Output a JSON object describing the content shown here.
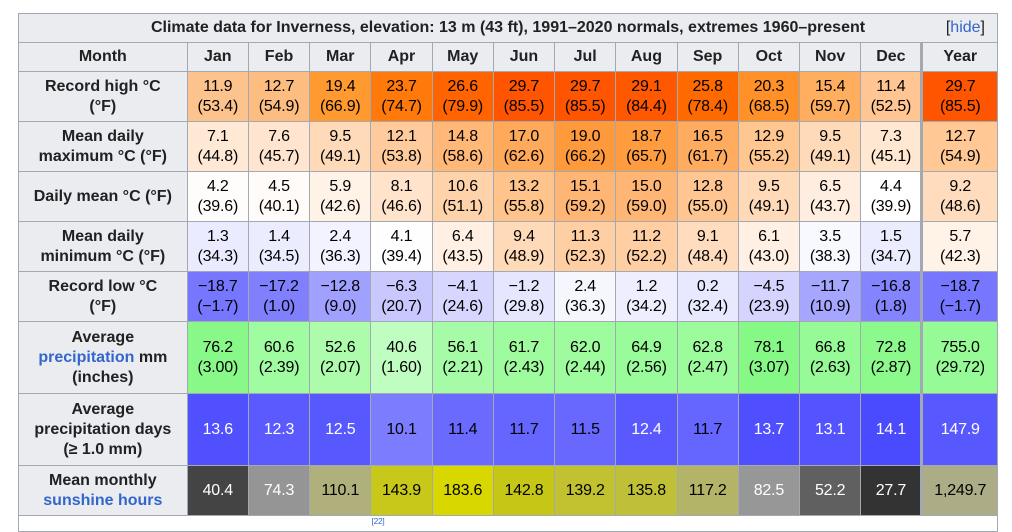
{
  "title": "Climate data for Inverness, elevation: 13 m (43 ft), 1991–2020 normals, extremes 1960–present",
  "hide_open": "[",
  "hide_label": "hide",
  "hide_close": "]",
  "month_header": "Month",
  "months": [
    "Jan",
    "Feb",
    "Mar",
    "Apr",
    "May",
    "Jun",
    "Jul",
    "Aug",
    "Sep",
    "Oct",
    "Nov",
    "Dec",
    "Year"
  ],
  "rows": [
    {
      "label": [
        "Record high °C",
        "(°F)"
      ],
      "height": 50,
      "cells": [
        [
          "11.9",
          "(53.4)",
          "#fdc38c",
          "#000"
        ],
        [
          "12.7",
          "(54.9)",
          "#fdbd80",
          "#000"
        ],
        [
          "19.4",
          "(66.9)",
          "#ff9a30",
          "#000"
        ],
        [
          "23.7",
          "(74.7)",
          "#ff7a0a",
          "#000"
        ],
        [
          "26.6",
          "(79.9)",
          "#ff6400",
          "#000"
        ],
        [
          "29.7",
          "(85.5)",
          "#ff5500",
          "#000"
        ],
        [
          "29.7",
          "(85.5)",
          "#ff5500",
          "#000"
        ],
        [
          "29.1",
          "(84.4)",
          "#ff5800",
          "#000"
        ],
        [
          "25.8",
          "(78.4)",
          "#ff6a00",
          "#000"
        ],
        [
          "20.3",
          "(68.5)",
          "#ff9128",
          "#000"
        ],
        [
          "15.4",
          "(59.7)",
          "#ffae60",
          "#000"
        ],
        [
          "11.4",
          "(52.5)",
          "#ffc592",
          "#000"
        ],
        [
          "29.7",
          "(85.5)",
          "#ff5500",
          "#000"
        ]
      ]
    },
    {
      "label": [
        "Mean daily",
        "maximum °C (°F)"
      ],
      "height": 50,
      "cells": [
        [
          "7.1",
          "(44.8)",
          "#ffe8d4",
          "#000"
        ],
        [
          "7.6",
          "(45.7)",
          "#ffe5cf",
          "#000"
        ],
        [
          "9.5",
          "(49.1)",
          "#ffdab9",
          "#000"
        ],
        [
          "12.1",
          "(53.8)",
          "#ffcb9c",
          "#000"
        ],
        [
          "14.8",
          "(58.6)",
          "#ffb878",
          "#000"
        ],
        [
          "17.0",
          "(62.6)",
          "#ffa95a",
          "#000"
        ],
        [
          "19.0",
          "(66.2)",
          "#ff9a3c",
          "#000"
        ],
        [
          "18.7",
          "(65.7)",
          "#ff9c40",
          "#000"
        ],
        [
          "16.5",
          "(61.7)",
          "#ffac60",
          "#000"
        ],
        [
          "12.9",
          "(55.2)",
          "#ffc690",
          "#000"
        ],
        [
          "9.5",
          "(49.1)",
          "#ffdab9",
          "#000"
        ],
        [
          "7.3",
          "(45.1)",
          "#ffe7d2",
          "#000"
        ],
        [
          "12.7",
          "(54.9)",
          "#ffc894",
          "#000"
        ]
      ]
    },
    {
      "label": [
        "Daily mean °C (°F)"
      ],
      "height": 50,
      "cells": [
        [
          "4.2",
          "(39.6)",
          "#fffdfb",
          "#000"
        ],
        [
          "4.5",
          "(40.1)",
          "#fffbf8",
          "#000"
        ],
        [
          "5.9",
          "(42.6)",
          "#fff2e6",
          "#000"
        ],
        [
          "8.1",
          "(46.6)",
          "#ffe3cb",
          "#000"
        ],
        [
          "10.6",
          "(51.1)",
          "#ffd3aa",
          "#000"
        ],
        [
          "13.2",
          "(55.8)",
          "#ffc38c",
          "#000"
        ],
        [
          "15.1",
          "(59.2)",
          "#ffb574",
          "#000"
        ],
        [
          "15.0",
          "(59.0)",
          "#ffb675",
          "#000"
        ],
        [
          "12.8",
          "(55.0)",
          "#ffc691",
          "#000"
        ],
        [
          "9.5",
          "(49.1)",
          "#ffdab9",
          "#000"
        ],
        [
          "6.5",
          "(43.7)",
          "#ffeee0",
          "#000"
        ],
        [
          "4.4",
          "(39.9)",
          "#ffffff",
          "#000"
        ],
        [
          "9.2",
          "(48.6)",
          "#ffdcbd",
          "#000"
        ]
      ]
    },
    {
      "label": [
        "Mean daily",
        "minimum °C (°F)"
      ],
      "height": 50,
      "cells": [
        [
          "1.3",
          "(34.3)",
          "#ebebff",
          "#000"
        ],
        [
          "1.4",
          "(34.5)",
          "#ececff",
          "#000"
        ],
        [
          "2.4",
          "(36.3)",
          "#f3f3ff",
          "#000"
        ],
        [
          "4.1",
          "(39.4)",
          "#fefeff",
          "#000"
        ],
        [
          "6.4",
          "(43.5)",
          "#fff0e3",
          "#000"
        ],
        [
          "9.4",
          "(48.9)",
          "#ffdab9",
          "#000"
        ],
        [
          "11.3",
          "(52.3)",
          "#ffcea2",
          "#000"
        ],
        [
          "11.2",
          "(52.2)",
          "#ffcfa3",
          "#000"
        ],
        [
          "9.1",
          "(48.4)",
          "#ffdcbd",
          "#000"
        ],
        [
          "6.1",
          "(43.0)",
          "#fff0e3",
          "#000"
        ],
        [
          "3.5",
          "(38.3)",
          "#f8f8ff",
          "#000"
        ],
        [
          "1.5",
          "(34.7)",
          "#ececff",
          "#000"
        ],
        [
          "5.7",
          "(42.3)",
          "#fff3e8",
          "#000"
        ]
      ]
    },
    {
      "label": [
        "Record low °C",
        "(°F)"
      ],
      "height": 50,
      "cells": [
        [
          "−18.7",
          "(−1.7)",
          "#7676ff",
          "#000"
        ],
        [
          "−17.2",
          "(1.0)",
          "#8080ff",
          "#000"
        ],
        [
          "−12.8",
          "(9.0)",
          "#a0a0ff",
          "#000"
        ],
        [
          "−6.3",
          "(20.7)",
          "#c8c8ff",
          "#000"
        ],
        [
          "−4.1",
          "(24.6)",
          "#d6d6ff",
          "#000"
        ],
        [
          "−1.2",
          "(29.8)",
          "#e6e6ff",
          "#000"
        ],
        [
          "2.4",
          "(36.3)",
          "#f6f6ff",
          "#000"
        ],
        [
          "1.2",
          "(34.2)",
          "#eeeeff",
          "#000"
        ],
        [
          "0.2",
          "(32.4)",
          "#e8e8ff",
          "#000"
        ],
        [
          "−4.5",
          "(23.9)",
          "#d4d4ff",
          "#000"
        ],
        [
          "−11.7",
          "(10.9)",
          "#a6a6ff",
          "#000"
        ],
        [
          "−16.8",
          "(1.8)",
          "#8484ff",
          "#000"
        ],
        [
          "−18.7",
          "(−1.7)",
          "#7676ff",
          "#000"
        ]
      ]
    },
    {
      "label": [
        "Average",
        "precipitation",
        "mm",
        "(inches)"
      ],
      "height": 72,
      "cells": [
        [
          "76.2",
          "(3.00)",
          "#88f888",
          "#000"
        ],
        [
          "60.6",
          "(2.39)",
          "#a0fca0",
          "#000"
        ],
        [
          "52.6",
          "(2.07)",
          "#acfcac",
          "#000"
        ],
        [
          "40.6",
          "(1.60)",
          "#c0fdc0",
          "#000"
        ],
        [
          "56.1",
          "(2.21)",
          "#a6fca6",
          "#000"
        ],
        [
          "61.7",
          "(2.43)",
          "#9efc9e",
          "#000"
        ],
        [
          "62.0",
          "(2.44)",
          "#9efc9e",
          "#000"
        ],
        [
          "64.9",
          "(2.56)",
          "#99fb99",
          "#000"
        ],
        [
          "62.8",
          "(2.47)",
          "#9cfc9c",
          "#000"
        ],
        [
          "78.1",
          "(3.07)",
          "#86f886",
          "#000"
        ],
        [
          "66.8",
          "(2.63)",
          "#96fa96",
          "#000"
        ],
        [
          "72.8",
          "(2.87)",
          "#8cf98c",
          "#000"
        ],
        [
          "755.0",
          "(29.72)",
          "#96fa96",
          "#000"
        ]
      ]
    },
    {
      "label": [
        "Average",
        "precipitation days",
        "(≥ 1.0 mm)"
      ],
      "height": 72,
      "cells": [
        [
          "13.6",
          "",
          "#5050ff",
          "#fff"
        ],
        [
          "12.3",
          "",
          "#5a5aff",
          "#fff"
        ],
        [
          "12.5",
          "",
          "#5858ff",
          "#fff"
        ],
        [
          "10.1",
          "",
          "#7c7cff",
          "#000"
        ],
        [
          "11.4",
          "",
          "#6a6aff",
          "#000"
        ],
        [
          "11.7",
          "",
          "#6565ff",
          "#000"
        ],
        [
          "11.5",
          "",
          "#6868ff",
          "#000"
        ],
        [
          "12.4",
          "",
          "#5959ff",
          "#fff"
        ],
        [
          "11.7",
          "",
          "#6565ff",
          "#000"
        ],
        [
          "13.7",
          "",
          "#4f4fff",
          "#fff"
        ],
        [
          "13.1",
          "",
          "#5454ff",
          "#fff"
        ],
        [
          "14.1",
          "",
          "#4a4aff",
          "#fff"
        ],
        [
          "147.9",
          "",
          "#5858ff",
          "#fff"
        ]
      ]
    },
    {
      "label": [
        "Mean monthly",
        "sunshine hours"
      ],
      "height": 50,
      "cells": [
        [
          "40.4",
          "",
          "#444444",
          "#fff"
        ],
        [
          "74.3",
          "",
          "#959595",
          "#fff"
        ],
        [
          "110.1",
          "",
          "#b0b07c",
          "#000"
        ],
        [
          "143.9",
          "",
          "#c8c81a",
          "#000"
        ],
        [
          "183.6",
          "",
          "#d8d800",
          "#000"
        ],
        [
          "142.8",
          "",
          "#c6c616",
          "#000"
        ],
        [
          "139.2",
          "",
          "#c2c230",
          "#000"
        ],
        [
          "135.8",
          "",
          "#c0c038",
          "#000"
        ],
        [
          "117.2",
          "",
          "#b4b468",
          "#000"
        ],
        [
          "82.5",
          "",
          "#979797",
          "#fff"
        ],
        [
          "52.2",
          "",
          "#606060",
          "#fff"
        ],
        [
          "27.7",
          "",
          "#333333",
          "#fff"
        ],
        [
          "1,249.7",
          "",
          "#acac86",
          "#000"
        ]
      ]
    }
  ],
  "footnote": "[22]"
}
